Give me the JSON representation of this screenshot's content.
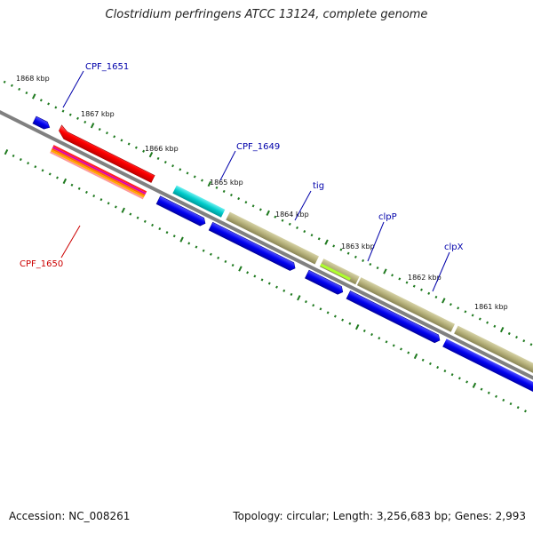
{
  "title": "Clostridium perfringens ATCC 13124, complete genome",
  "footer": {
    "accession": "Accession: NC_008261",
    "summary": "Topology: circular; Length: 3,256,683 bp; Genes: 2,993"
  },
  "colors": {
    "backbone": "#808080",
    "tick": "#1f7a1f",
    "forward_gene": "#0000ee",
    "reverse_gene": "#ff0000",
    "tig_gene": "#b5b07a",
    "clp_gene": "#b5b07a",
    "teal_gene": "#00cccc",
    "label_blue": "#0000aa",
    "label_red": "#cc0000"
  },
  "scale_labels": [
    "1868 kbp",
    "1867 kbp",
    "1866 kbp",
    "1865 kbp",
    "1864 kbp",
    "1863 kbp",
    "1862 kbp",
    "1861 kbp"
  ],
  "gene_labels": [
    {
      "text": "CPF_1651",
      "color": "label_blue"
    },
    {
      "text": "CPF_1649",
      "color": "label_blue"
    },
    {
      "text": "tig",
      "color": "label_blue"
    },
    {
      "text": "clpP",
      "color": "label_blue"
    },
    {
      "text": "clpX",
      "color": "label_blue"
    },
    {
      "text": "CPF_1650",
      "color": "label_red"
    }
  ]
}
